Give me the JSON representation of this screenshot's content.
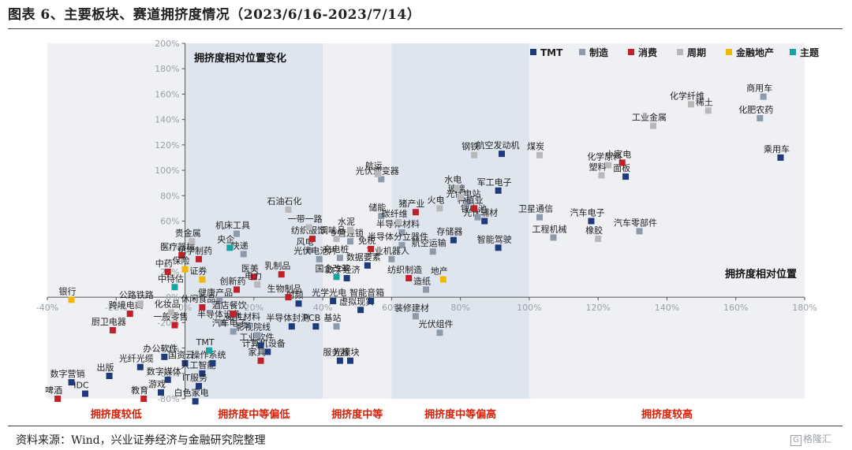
{
  "title": "图表 6、主要板块、赛道拥挤度情况（2023/6/16-2023/7/14）",
  "source": "资料来源：Wind，兴业证券经济与金融研究院整理",
  "watermark": "格隆汇",
  "chart_data": {
    "type": "scatter",
    "title": "",
    "xlabel": "拥挤度相对位置",
    "ylabel": "拥挤度相对位置变化",
    "xlim": [
      -40,
      180
    ],
    "ylim": [
      -80,
      200
    ],
    "x_ticks": [
      "-40%",
      "-20%",
      "0%",
      "20%",
      "40%",
      "60%",
      "80%",
      "100%",
      "120%",
      "140%",
      "160%",
      "180%"
    ],
    "y_ticks": [
      "-80%",
      "-60%",
      "-40%",
      "-20%",
      "0%",
      "20%",
      "40%",
      "60%",
      "80%",
      "100%",
      "120%",
      "140%",
      "160%",
      "180%",
      "200%"
    ],
    "grid": false,
    "legend_position": "top-right",
    "zones": [
      {
        "label": "拥挤度较低",
        "from": -40,
        "to": 0,
        "fill": "#eef0f3"
      },
      {
        "label": "拥挤度中等偏低",
        "from": 0,
        "to": 40,
        "fill": "#dfe5ef"
      },
      {
        "label": "拥挤度中等",
        "from": 40,
        "to": 60,
        "fill": "#eef0f3"
      },
      {
        "label": "拥挤度中等偏高",
        "from": 60,
        "to": 100,
        "fill": "#dfe5ef"
      },
      {
        "label": "拥挤度较高",
        "from": 100,
        "to": 180,
        "fill": "#eef0f3"
      }
    ],
    "zone_label_color": "#d81e06",
    "series": [
      {
        "name": "TMT",
        "color": "#1f3a7a",
        "points": [
          {
            "label": "数字营销",
            "x": -33,
            "y": -67
          },
          {
            "label": "出版",
            "x": -22,
            "y": -62
          },
          {
            "label": "IDC",
            "x": -29,
            "y": -76
          },
          {
            "label": "光纤光缆",
            "x": -13,
            "y": -55
          },
          {
            "label": "数字媒体",
            "x": -5,
            "y": -65
          },
          {
            "label": "游戏",
            "x": -7,
            "y": -75
          },
          {
            "label": "办公软件",
            "x": -6,
            "y": -47
          },
          {
            "label": "国资云",
            "x": 0,
            "y": -52
          },
          {
            "label": "人工智能",
            "x": 5,
            "y": -60
          },
          {
            "label": "操作系统",
            "x": 8,
            "y": -52
          },
          {
            "label": "IT服务",
            "x": 4,
            "y": -70
          },
          {
            "label": "白色家电",
            "x": 3,
            "y": -82
          },
          {
            "label": "计算机设备",
            "x": 24,
            "y": -43
          },
          {
            "label": "光模块",
            "x": 48,
            "y": -50
          },
          {
            "label": "服务器",
            "x": 45,
            "y": -50
          },
          {
            "label": "半导体封测",
            "x": 31,
            "y": -23
          },
          {
            "label": "PCB",
            "x": 38,
            "y": -23
          },
          {
            "label": "虚拟现实",
            "x": 51,
            "y": -10
          },
          {
            "label": "智能音箱",
            "x": 54,
            "y": -3
          },
          {
            "label": "数字经济",
            "x": 47,
            "y": 15
          },
          {
            "label": "光学光电",
            "x": 43,
            "y": -3
          },
          {
            "label": "数据要素",
            "x": 53,
            "y": 25
          },
          {
            "label": "存储器",
            "x": 78,
            "y": 45
          },
          {
            "label": "智能驾驶",
            "x": 91,
            "y": 39
          },
          {
            "label": "光伏辅材",
            "x": 87,
            "y": 60
          },
          {
            "label": "军工电子",
            "x": 91,
            "y": 84
          },
          {
            "label": "航空发动机",
            "x": 92,
            "y": 113
          },
          {
            "label": "乘用车",
            "x": 173,
            "y": 110
          },
          {
            "label": "面板",
            "x": 128,
            "y": 95
          },
          {
            "label": "汽车电子",
            "x": 118,
            "y": 60
          },
          {
            "label": "工业软件",
            "x": 22,
            "y": -38
          },
          {
            "label": "射频",
            "x": 33,
            "y": -5
          }
        ]
      },
      {
        "name": "制造",
        "color": "#8d9aac",
        "points": [
          {
            "label": "商用车",
            "x": 168,
            "y": 158
          },
          {
            "label": "化肥农药",
            "x": 167,
            "y": 141
          },
          {
            "label": "汽车零部件",
            "x": 132,
            "y": 52
          },
          {
            "label": "工程机械",
            "x": 107,
            "y": 47
          },
          {
            "label": "卫星通信",
            "x": 103,
            "y": 63
          },
          {
            "label": "锂电池",
            "x": 85,
            "y": 63
          },
          {
            "label": "光伏电站",
            "x": 82,
            "y": 75
          },
          {
            "label": "光伏逆变器",
            "x": 57,
            "y": 93
          },
          {
            "label": "储能",
            "x": 57,
            "y": 64
          },
          {
            "label": "风电",
            "x": 36,
            "y": 37
          },
          {
            "label": "光伏电池片",
            "x": 39,
            "y": 30
          },
          {
            "label": "充电桩",
            "x": 45,
            "y": 31
          },
          {
            "label": "专营连锁",
            "x": 48,
            "y": 44
          },
          {
            "label": "半导体材料",
            "x": 63,
            "y": 51
          },
          {
            "label": "半导体分立器件",
            "x": 63,
            "y": 41
          },
          {
            "label": "航空运输",
            "x": 72,
            "y": 36
          },
          {
            "label": "装修建材",
            "x": 67,
            "y": -15
          },
          {
            "label": "光伏组件",
            "x": 74,
            "y": -28
          },
          {
            "label": "工业机器人",
            "x": 60,
            "y": 30
          },
          {
            "label": "造纸",
            "x": 70,
            "y": 6
          },
          {
            "label": "机床工具",
            "x": 15,
            "y": 50
          },
          {
            "label": "快递",
            "x": 17,
            "y": 34
          },
          {
            "label": "磁性材料",
            "x": 18,
            "y": -22
          },
          {
            "label": "半导体设备",
            "x": 11,
            "y": -20
          },
          {
            "label": "汽车电子",
            "x": 14,
            "y": -27
          },
          {
            "label": "影视院线",
            "x": 21,
            "y": -30
          },
          {
            "label": "基站",
            "x": 44,
            "y": -23
          },
          {
            "label": "健康产品",
            "x": 10,
            "y": -3
          }
        ]
      },
      {
        "name": "消费",
        "color": "#c0202a",
        "points": [
          {
            "label": "小家电",
            "x": 127,
            "y": 106
          },
          {
            "label": "猪产业",
            "x": 67,
            "y": 67
          },
          {
            "label": "种植业",
            "x": 84,
            "y": 70
          },
          {
            "label": "纺织服饰",
            "x": 37,
            "y": 46
          },
          {
            "label": "免税",
            "x": 54,
            "y": 38
          },
          {
            "label": "纺织制造",
            "x": 65,
            "y": 15
          },
          {
            "label": "化学制药",
            "x": 4,
            "y": 30
          },
          {
            "label": "中药",
            "x": -5,
            "y": 20
          },
          {
            "label": "医疗器械",
            "x": -1,
            "y": 33
          },
          {
            "label": "医美",
            "x": 20,
            "y": 16
          },
          {
            "label": "乳制品",
            "x": 28,
            "y": 18
          },
          {
            "label": "创新药",
            "x": 15,
            "y": 6
          },
          {
            "label": "酒店餐饮",
            "x": 14,
            "y": -13
          },
          {
            "label": "一般零售",
            "x": -3,
            "y": -22
          },
          {
            "label": "厨卫电器",
            "x": -21,
            "y": -26
          },
          {
            "label": "跨境电商",
            "x": -16,
            "y": -13
          },
          {
            "label": "家具",
            "x": 22,
            "y": -50
          },
          {
            "label": "教育",
            "x": -12,
            "y": -80
          },
          {
            "label": "啤酒",
            "x": -37,
            "y": -80
          },
          {
            "label": "休闲食品",
            "x": 5,
            "y": -8
          },
          {
            "label": "生物制品",
            "x": 30,
            "y": 0
          }
        ]
      },
      {
        "name": "周期",
        "color": "#b8b8b8",
        "points": [
          {
            "label": "化学纤维",
            "x": 147,
            "y": 152
          },
          {
            "label": "稀土",
            "x": 152,
            "y": 147
          },
          {
            "label": "工业金属",
            "x": 136,
            "y": 135
          },
          {
            "label": "煤炭",
            "x": 103,
            "y": 112
          },
          {
            "label": "化学原料",
            "x": 123,
            "y": 104
          },
          {
            "label": "塑料",
            "x": 121,
            "y": 96
          },
          {
            "label": "橡胶",
            "x": 120,
            "y": 46
          },
          {
            "label": "钢铁",
            "x": 84,
            "y": 112
          },
          {
            "label": "航运",
            "x": 56,
            "y": 97
          },
          {
            "label": "石油石化",
            "x": 30,
            "y": 69
          },
          {
            "label": "玻璃",
            "x": 80,
            "y": 79
          },
          {
            "label": "水电",
            "x": 79,
            "y": 86
          },
          {
            "label": "火电",
            "x": 74,
            "y": 70
          },
          {
            "label": "水泥",
            "x": 48,
            "y": 53
          },
          {
            "label": "碳纤维",
            "x": 62,
            "y": 59
          },
          {
            "label": "一带一路",
            "x": 36,
            "y": 55
          },
          {
            "label": "调味品",
            "x": 44,
            "y": 46
          },
          {
            "label": "贵金属",
            "x": 2,
            "y": 44
          },
          {
            "label": "公路铁路",
            "x": -13,
            "y": -5
          },
          {
            "label": "化妆品",
            "x": -4,
            "y": -12
          },
          {
            "label": "电力",
            "x": 21,
            "y": 10
          }
        ]
      },
      {
        "name": "金融地产",
        "color": "#f2b800",
        "points": [
          {
            "label": "银行",
            "x": -33,
            "y": -2
          },
          {
            "label": "保险",
            "x": 0,
            "y": 22
          },
          {
            "label": "证券",
            "x": 5,
            "y": 14
          },
          {
            "label": "地产",
            "x": 75,
            "y": 14
          }
        ]
      },
      {
        "name": "主题",
        "color": "#1aa3a3",
        "points": [
          {
            "label": "央企",
            "x": 13,
            "y": 39
          },
          {
            "label": "中特估",
            "x": -3,
            "y": 8
          },
          {
            "label": "TMT",
            "x": 7,
            "y": -42
          },
          {
            "label": "国企改革",
            "x": 44,
            "y": 16
          }
        ]
      }
    ]
  }
}
